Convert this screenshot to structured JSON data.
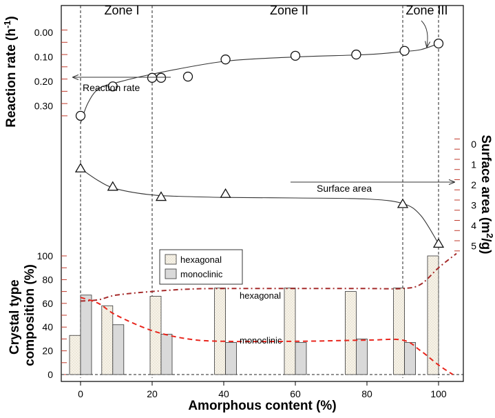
{
  "chart_data": {
    "type": "composite",
    "xlabel": "Amorphous content (%)",
    "x_ticks": [
      0,
      20,
      40,
      60,
      80,
      100
    ],
    "xlim": [
      -5,
      105
    ],
    "zones": [
      {
        "label": "Zone I",
        "boundary_x": [
          0,
          20
        ]
      },
      {
        "label": "Zone II",
        "boundary_x": [
          20,
          90
        ]
      },
      {
        "label": "Zone III",
        "boundary_x": [
          90,
          100
        ]
      }
    ],
    "panels": [
      {
        "id": "reaction",
        "type": "scatter",
        "ylabel_html": "Reaction rate (h<tspan baseline-shift=\"super\" font-size=\"13\">-1</tspan>)",
        "ylabel": "Reaction rate (h-1)",
        "y_ticks": [
          "0.00",
          "0.10",
          "0.20",
          "0.30"
        ],
        "y_tick_values": [
          0,
          0.1,
          0.2,
          0.3
        ],
        "ylim": [
          -0.02,
          0.36
        ],
        "marker": "circle",
        "x": [
          0,
          9,
          20,
          22.5,
          30,
          40.5,
          60,
          77,
          90.5,
          100
        ],
        "y": [
          0.34,
          0.22,
          0.185,
          0.185,
          0.18,
          0.11,
          0.095,
          0.09,
          0.075,
          0.045
        ],
        "curve_x": [
          0,
          2,
          5,
          10,
          20,
          40,
          60,
          80,
          90,
          95,
          100
        ],
        "curve_y": [
          0.37,
          0.29,
          0.23,
          0.205,
          0.17,
          0.118,
          0.1,
          0.09,
          0.078,
          0.07,
          0.045
        ],
        "annotation": "Reaction rate"
      },
      {
        "id": "surface",
        "type": "scatter",
        "ylabel": "Surface area (m2/g)",
        "y_ticks": [
          "0",
          "1",
          "2",
          "3",
          "4",
          "5"
        ],
        "y_tick_values": [
          0,
          1,
          2,
          3,
          4,
          5
        ],
        "ylim": [
          -0.3,
          5.8
        ],
        "marker": "triangle",
        "x": [
          0,
          9,
          22.5,
          40.5,
          90,
          100
        ],
        "y": [
          1.2,
          2.1,
          2.6,
          2.45,
          2.95,
          4.9
        ],
        "curve_x": [
          0,
          5,
          10,
          20,
          30,
          40,
          60,
          80,
          90,
          95,
          100
        ],
        "curve_y": [
          1.2,
          1.8,
          2.2,
          2.5,
          2.58,
          2.62,
          2.65,
          2.7,
          2.92,
          3.5,
          4.9
        ],
        "annotation": "Surface area"
      },
      {
        "id": "crystal",
        "type": "bar",
        "ylabel_line1": "Crystal type",
        "ylabel_line2": "composition (%)",
        "y_ticks": [
          "0",
          "20",
          "40",
          "60",
          "80",
          "100"
        ],
        "y_tick_values": [
          0,
          20,
          40,
          60,
          80,
          100
        ],
        "ylim": [
          -2,
          105
        ],
        "categories_x": [
          0,
          9,
          22.5,
          40.5,
          60,
          77,
          90.5,
          100
        ],
        "series": [
          {
            "name": "hexagonal",
            "color": "#f3eee2",
            "values": [
              33,
              58,
              66,
              73,
              73,
              70,
              73,
              100
            ]
          },
          {
            "name": "monoclinic",
            "color": "#d9d9d9",
            "values": [
              67,
              42,
              34,
              27,
              27,
              30,
              27,
              0
            ]
          }
        ],
        "trend_lines": [
          {
            "label": "hexagonal",
            "color": "#a52a2a",
            "style": "dash-dot",
            "x": [
              0,
              5,
              10,
              20,
              30,
              40,
              60,
              80,
              90,
              95,
              100,
              105
            ],
            "y": [
              62,
              63,
              67,
              70,
              72,
              72.5,
              72.5,
              72.5,
              72.5,
              76,
              90,
              102
            ]
          },
          {
            "label": "monoclinic",
            "color": "#e8251c",
            "style": "dashed",
            "x": [
              0,
              5,
              10,
              20,
              30,
              40,
              60,
              80,
              90,
              95,
              100,
              104
            ],
            "y": [
              65,
              60,
              50,
              37,
              30,
              28,
              28,
              29,
              29,
              20,
              8,
              0
            ]
          }
        ]
      }
    ]
  }
}
